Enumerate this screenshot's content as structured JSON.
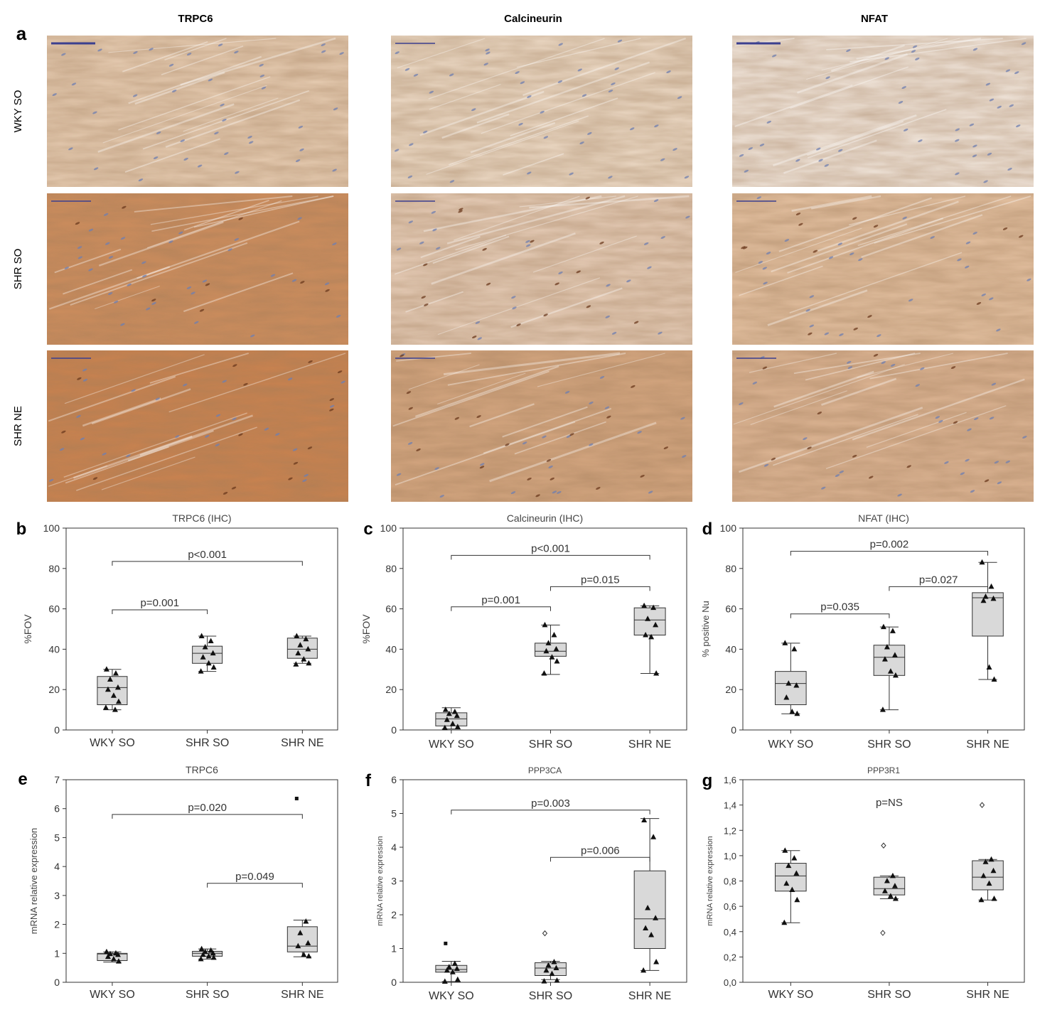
{
  "panel_a": {
    "letter": "a",
    "column_titles": [
      "TRPC6",
      "Calcineurin",
      "NFAT"
    ],
    "row_labels": [
      "WKY SO",
      "SHR SO",
      "SHR NE"
    ],
    "tile_colors": [
      [
        "#e7cdb3",
        "#ecdac6",
        "#f1e6dc"
      ],
      [
        "#cd8d5d",
        "#e6cdb8",
        "#e3c0a0"
      ],
      [
        "#c9824f",
        "#d4a680",
        "#dcb493"
      ]
    ],
    "nuclei_color": "#6f7fb0",
    "scale_bar_color": "#3b3f8f"
  },
  "chart_data": [
    {
      "type": "box",
      "letter": "b",
      "title": "TRPC6 (IHC)",
      "categories": [
        "WKY SO",
        "SHR SO",
        "SHR NE"
      ],
      "ylabel": "%FOV",
      "ylim": [
        0,
        100
      ],
      "yticks": [
        "0",
        "20",
        "40",
        "60",
        "80",
        "100"
      ],
      "boxes": [
        {
          "q1": 12.5,
          "median": 21,
          "q3": 26.5,
          "whisker_low": 10,
          "whisker_high": 30
        },
        {
          "q1": 33,
          "median": 38,
          "q3": 41.5,
          "whisker_low": 29,
          "whisker_high": 46.5
        },
        {
          "q1": 35.5,
          "median": 40,
          "q3": 45.5,
          "whisker_low": 33,
          "whisker_high": 46.5
        }
      ],
      "points": [
        [
          {
            "y": 30,
            "m": "tri"
          },
          {
            "y": 28,
            "m": "tri"
          },
          {
            "y": 25,
            "m": "tri"
          },
          {
            "y": 21,
            "m": "tri"
          },
          {
            "y": 20,
            "m": "tri"
          },
          {
            "y": 17,
            "m": "tri"
          },
          {
            "y": 14,
            "m": "tri"
          },
          {
            "y": 11,
            "m": "tri"
          },
          {
            "y": 10,
            "m": "tri"
          }
        ],
        [
          {
            "y": 46.5,
            "m": "tri"
          },
          {
            "y": 44,
            "m": "tri"
          },
          {
            "y": 41,
            "m": "tri"
          },
          {
            "y": 38,
            "m": "tri"
          },
          {
            "y": 36,
            "m": "tri"
          },
          {
            "y": 33,
            "m": "tri"
          },
          {
            "y": 31,
            "m": "tri"
          },
          {
            "y": 29,
            "m": "tri"
          }
        ],
        [
          {
            "y": 46.5,
            "m": "tri"
          },
          {
            "y": 45,
            "m": "tri"
          },
          {
            "y": 42,
            "m": "tri"
          },
          {
            "y": 40,
            "m": "tri"
          },
          {
            "y": 38,
            "m": "tri"
          },
          {
            "y": 35,
            "m": "tri"
          },
          {
            "y": 33,
            "m": "tri"
          },
          {
            "y": 32.5,
            "m": "tri"
          }
        ]
      ],
      "comparisons": [
        {
          "from": 0,
          "to": 2,
          "y": 83.5,
          "label": "p<0.001"
        },
        {
          "from": 0,
          "to": 1,
          "y": 59.5,
          "label": "p=0.001"
        }
      ]
    },
    {
      "type": "box",
      "letter": "c",
      "title": "Calcineurin (IHC)",
      "categories": [
        "WKY SO",
        "SHR SO",
        "SHR NE"
      ],
      "ylabel": "%FOV",
      "ylim": [
        0,
        100
      ],
      "yticks": [
        "0",
        "20",
        "40",
        "60",
        "80",
        "100"
      ],
      "boxes": [
        {
          "q1": 2,
          "median": 5.5,
          "q3": 8.5,
          "whisker_low": 0.5,
          "whisker_high": 11
        },
        {
          "q1": 36.5,
          "median": 39,
          "q3": 43,
          "whisker_low": 27.5,
          "whisker_high": 52
        },
        {
          "q1": 47,
          "median": 54.5,
          "q3": 60.5,
          "whisker_low": 28,
          "whisker_high": 61.5
        }
      ],
      "points": [
        [
          {
            "y": 10,
            "m": "tri"
          },
          {
            "y": 9,
            "m": "tri"
          },
          {
            "y": 8,
            "m": "tri"
          },
          {
            "y": 7,
            "m": "tri"
          },
          {
            "y": 5,
            "m": "tri"
          },
          {
            "y": 3,
            "m": "tri"
          },
          {
            "y": 1.5,
            "m": "tri"
          },
          {
            "y": 1,
            "m": "tri"
          }
        ],
        [
          {
            "y": 52,
            "m": "tri"
          },
          {
            "y": 47,
            "m": "tri"
          },
          {
            "y": 43,
            "m": "tri"
          },
          {
            "y": 40,
            "m": "tri"
          },
          {
            "y": 39,
            "m": "tri"
          },
          {
            "y": 36,
            "m": "tri"
          },
          {
            "y": 34,
            "m": "tri"
          },
          {
            "y": 28,
            "m": "tri"
          }
        ],
        [
          {
            "y": 61.5,
            "m": "tri"
          },
          {
            "y": 60.5,
            "m": "tri"
          },
          {
            "y": 55,
            "m": "tri"
          },
          {
            "y": 52,
            "m": "tri"
          },
          {
            "y": 47,
            "m": "tri"
          },
          {
            "y": 46,
            "m": "tri"
          },
          {
            "y": 28,
            "m": "tri"
          }
        ]
      ],
      "comparisons": [
        {
          "from": 0,
          "to": 2,
          "y": 86.5,
          "label": "p<0.001"
        },
        {
          "from": 0,
          "to": 1,
          "y": 61,
          "label": "p=0.001"
        },
        {
          "from": 1,
          "to": 2,
          "y": 71,
          "label": "p=0.015"
        }
      ]
    },
    {
      "type": "box",
      "letter": "d",
      "title": "NFAT (IHC)",
      "categories": [
        "WKY SO",
        "SHR SO",
        "SHR NE"
      ],
      "ylabel": "% positive Nu",
      "ylim": [
        0,
        100
      ],
      "yticks": [
        "0",
        "20",
        "40",
        "60",
        "80",
        "100"
      ],
      "boxes": [
        {
          "q1": 12.5,
          "median": 23,
          "q3": 29,
          "whisker_low": 8,
          "whisker_high": 43
        },
        {
          "q1": 27,
          "median": 36,
          "q3": 42,
          "whisker_low": 10,
          "whisker_high": 51
        },
        {
          "q1": 46.5,
          "median": 65.5,
          "q3": 68,
          "whisker_low": 25,
          "whisker_high": 83
        }
      ],
      "points": [
        [
          {
            "y": 43,
            "m": "tri"
          },
          {
            "y": 40,
            "m": "tri"
          },
          {
            "y": 23,
            "m": "tri"
          },
          {
            "y": 22,
            "m": "tri"
          },
          {
            "y": 16,
            "m": "tri"
          },
          {
            "y": 9,
            "m": "tri"
          },
          {
            "y": 8,
            "m": "tri"
          }
        ],
        [
          {
            "y": 51,
            "m": "tri"
          },
          {
            "y": 49,
            "m": "tri"
          },
          {
            "y": 41,
            "m": "tri"
          },
          {
            "y": 37,
            "m": "tri"
          },
          {
            "y": 35,
            "m": "tri"
          },
          {
            "y": 29,
            "m": "tri"
          },
          {
            "y": 27,
            "m": "tri"
          },
          {
            "y": 10,
            "m": "tri"
          }
        ],
        [
          {
            "y": 83,
            "m": "tri"
          },
          {
            "y": 71,
            "m": "tri"
          },
          {
            "y": 66,
            "m": "tri"
          },
          {
            "y": 65,
            "m": "tri"
          },
          {
            "y": 64,
            "m": "tri"
          },
          {
            "y": 31,
            "m": "tri"
          },
          {
            "y": 25,
            "m": "tri"
          }
        ]
      ],
      "comparisons": [
        {
          "from": 0,
          "to": 2,
          "y": 88.5,
          "label": "p=0.002"
        },
        {
          "from": 0,
          "to": 1,
          "y": 57.5,
          "label": "p=0.035"
        },
        {
          "from": 1,
          "to": 2,
          "y": 71,
          "label": "p=0.027"
        }
      ]
    },
    {
      "type": "box",
      "letter": "e",
      "title": "TRPC6",
      "categories": [
        "WKY SO",
        "SHR SO",
        "SHR NE"
      ],
      "ylabel": "mRNA relative expression",
      "ylim": [
        0,
        7
      ],
      "yticks": [
        "0",
        "1",
        "2",
        "3",
        "4",
        "5",
        "6",
        "7"
      ],
      "boxes": [
        {
          "q1": 0.75,
          "median": 0.98,
          "q3": 1.0,
          "whisker_low": 0.7,
          "whisker_high": 1.05
        },
        {
          "q1": 0.9,
          "median": 1.0,
          "q3": 1.07,
          "whisker_low": 0.8,
          "whisker_high": 1.15
        },
        {
          "q1": 1.05,
          "median": 1.25,
          "q3": 1.92,
          "whisker_low": 0.88,
          "whisker_high": 2.15
        }
      ],
      "points": [
        [
          {
            "y": 1.05,
            "m": "tri"
          },
          {
            "y": 1.0,
            "m": "tri"
          },
          {
            "y": 0.98,
            "m": "tri"
          },
          {
            "y": 0.95,
            "m": "tri"
          },
          {
            "y": 0.88,
            "m": "tri"
          },
          {
            "y": 0.8,
            "m": "tri"
          },
          {
            "y": 0.72,
            "m": "tri"
          }
        ],
        [
          {
            "y": 1.15,
            "m": "tri"
          },
          {
            "y": 1.1,
            "m": "tri"
          },
          {
            "y": 1.05,
            "m": "tri"
          },
          {
            "y": 1.0,
            "m": "tri"
          },
          {
            "y": 0.95,
            "m": "tri"
          },
          {
            "y": 0.9,
            "m": "tri"
          },
          {
            "y": 0.85,
            "m": "tri"
          },
          {
            "y": 0.8,
            "m": "tri"
          }
        ],
        [
          {
            "y": 6.35,
            "m": "sq"
          },
          {
            "y": 2.1,
            "m": "tri"
          },
          {
            "y": 1.7,
            "m": "tri"
          },
          {
            "y": 1.35,
            "m": "tri"
          },
          {
            "y": 1.25,
            "m": "tri"
          },
          {
            "y": 0.95,
            "m": "tri"
          },
          {
            "y": 0.9,
            "m": "tri"
          }
        ]
      ],
      "comparisons": [
        {
          "from": 0,
          "to": 2,
          "y": 5.8,
          "label": "p=0.020"
        },
        {
          "from": 1,
          "to": 2,
          "y": 3.42,
          "label": "p=0.049"
        }
      ]
    },
    {
      "type": "box",
      "letter": "f",
      "title": "PPP3CA",
      "categories": [
        "WKY SO",
        "SHR SO",
        "SHR NE"
      ],
      "ylabel": "mRNA relative expression",
      "ylim": [
        0,
        6
      ],
      "yticks": [
        "0",
        "1",
        "2",
        "3",
        "4",
        "5",
        "6"
      ],
      "boxes": [
        {
          "q1": 0.3,
          "median": 0.38,
          "q3": 0.5,
          "whisker_low": 0.02,
          "whisker_high": 0.62
        },
        {
          "q1": 0.2,
          "median": 0.42,
          "q3": 0.58,
          "whisker_low": 0.08,
          "whisker_high": 0.62
        },
        {
          "q1": 1.0,
          "median": 1.88,
          "q3": 3.3,
          "whisker_low": 0.35,
          "whisker_high": 4.85
        }
      ],
      "points": [
        [
          {
            "y": 1.15,
            "m": "sq"
          },
          {
            "y": 0.55,
            "m": "tri"
          },
          {
            "y": 0.45,
            "m": "tri"
          },
          {
            "y": 0.4,
            "m": "tri"
          },
          {
            "y": 0.35,
            "m": "tri"
          },
          {
            "y": 0.3,
            "m": "tri"
          },
          {
            "y": 0.08,
            "m": "tri"
          },
          {
            "y": 0.02,
            "m": "tri"
          }
        ],
        [
          {
            "y": 1.45,
            "m": "dia"
          },
          {
            "y": 0.6,
            "m": "tri"
          },
          {
            "y": 0.5,
            "m": "tri"
          },
          {
            "y": 0.42,
            "m": "tri"
          },
          {
            "y": 0.35,
            "m": "tri"
          },
          {
            "y": 0.25,
            "m": "tri"
          },
          {
            "y": 0.05,
            "m": "tri"
          },
          {
            "y": 0.03,
            "m": "tri"
          }
        ],
        [
          {
            "y": 4.8,
            "m": "tri"
          },
          {
            "y": 4.3,
            "m": "tri"
          },
          {
            "y": 2.2,
            "m": "tri"
          },
          {
            "y": 1.9,
            "m": "tri"
          },
          {
            "y": 1.6,
            "m": "tri"
          },
          {
            "y": 1.4,
            "m": "tri"
          },
          {
            "y": 0.6,
            "m": "tri"
          },
          {
            "y": 0.35,
            "m": "tri"
          }
        ]
      ],
      "comparisons": [
        {
          "from": 0,
          "to": 2,
          "y": 5.1,
          "label": "p=0.003"
        },
        {
          "from": 1,
          "to": 2,
          "y": 3.7,
          "label": "p=0.006"
        }
      ]
    },
    {
      "type": "box",
      "letter": "g",
      "title": "PPP3R1",
      "categories": [
        "WKY SO",
        "SHR SO",
        "SHR NE"
      ],
      "ylabel": "mRNA relative expression",
      "ylim": [
        0,
        1.6
      ],
      "yticks": [
        "0,0",
        "0,2",
        "0,4",
        "0,6",
        "0,8",
        "1,0",
        "1,2",
        "1,4",
        "1,6"
      ],
      "boxes": [
        {
          "q1": 0.72,
          "median": 0.84,
          "q3": 0.94,
          "whisker_low": 0.47,
          "whisker_high": 1.04
        },
        {
          "q1": 0.69,
          "median": 0.74,
          "q3": 0.83,
          "whisker_low": 0.66,
          "whisker_high": 0.84
        },
        {
          "q1": 0.73,
          "median": 0.83,
          "q3": 0.96,
          "whisker_low": 0.65,
          "whisker_high": 0.97
        }
      ],
      "points": [
        [
          {
            "y": 1.04,
            "m": "tri"
          },
          {
            "y": 0.98,
            "m": "tri"
          },
          {
            "y": 0.92,
            "m": "tri"
          },
          {
            "y": 0.86,
            "m": "tri"
          },
          {
            "y": 0.78,
            "m": "tri"
          },
          {
            "y": 0.73,
            "m": "tri"
          },
          {
            "y": 0.65,
            "m": "tri"
          },
          {
            "y": 0.47,
            "m": "tri"
          }
        ],
        [
          {
            "y": 1.08,
            "m": "dia"
          },
          {
            "y": 0.84,
            "m": "tri"
          },
          {
            "y": 0.8,
            "m": "tri"
          },
          {
            "y": 0.76,
            "m": "tri"
          },
          {
            "y": 0.72,
            "m": "tri"
          },
          {
            "y": 0.68,
            "m": "tri"
          },
          {
            "y": 0.66,
            "m": "tri"
          },
          {
            "y": 0.39,
            "m": "dia"
          }
        ],
        [
          {
            "y": 1.4,
            "m": "dia"
          },
          {
            "y": 0.97,
            "m": "tri"
          },
          {
            "y": 0.95,
            "m": "tri"
          },
          {
            "y": 0.88,
            "m": "tri"
          },
          {
            "y": 0.84,
            "m": "tri"
          },
          {
            "y": 0.78,
            "m": "tri"
          },
          {
            "y": 0.66,
            "m": "tri"
          },
          {
            "y": 0.65,
            "m": "tri"
          }
        ]
      ],
      "annotation": "p=NS",
      "annotation_y": 1.42,
      "comparisons": []
    }
  ]
}
